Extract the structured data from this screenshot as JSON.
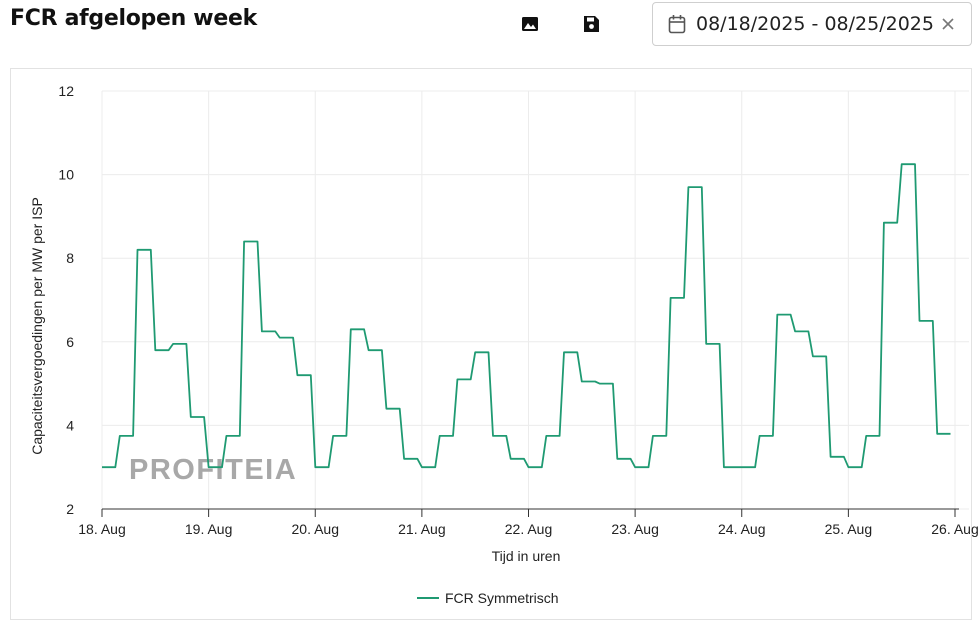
{
  "header": {
    "title": "FCR afgelopen week"
  },
  "toolbar": {
    "download_image_icon": "image-icon",
    "save_icon": "floppy-disk-icon"
  },
  "date_range": {
    "value": "08/18/2025 - 08/25/2025",
    "icon": "calendar-icon",
    "clear_icon": "close-icon"
  },
  "watermark": "PROFITEIA",
  "colors": {
    "series": "#1f9a72",
    "grid": "#ececec",
    "axis": "#333333"
  },
  "chart_data": {
    "type": "line",
    "title": "",
    "xlabel": "Tijd in uren",
    "ylabel": "Capaciteitsvergoedingen per MW per ISP",
    "ylim": [
      2,
      12
    ],
    "yticks": [
      2,
      4,
      6,
      8,
      10,
      12
    ],
    "xlim": [
      0,
      8
    ],
    "xticks": [
      0,
      1,
      2,
      3,
      4,
      5,
      6,
      7,
      8
    ],
    "xtick_labels": [
      "18. Aug",
      "19. Aug",
      "20. Aug",
      "21. Aug",
      "22. Aug",
      "23. Aug",
      "24. Aug",
      "25. Aug",
      "26. Aug"
    ],
    "grid": true,
    "legend_position": "bottom",
    "series": [
      {
        "name": "FCR Symmetrisch",
        "color": "#1f9a72",
        "points": [
          [
            0.0,
            3.0
          ],
          [
            0.125,
            3.0
          ],
          [
            0.167,
            3.75
          ],
          [
            0.292,
            3.75
          ],
          [
            0.333,
            8.2
          ],
          [
            0.458,
            8.2
          ],
          [
            0.5,
            5.8
          ],
          [
            0.625,
            5.8
          ],
          [
            0.667,
            5.95
          ],
          [
            0.792,
            5.95
          ],
          [
            0.833,
            4.2
          ],
          [
            0.958,
            4.2
          ],
          [
            1.0,
            3.0
          ],
          [
            1.125,
            3.0
          ],
          [
            1.167,
            3.75
          ],
          [
            1.292,
            3.75
          ],
          [
            1.333,
            8.4
          ],
          [
            1.458,
            8.4
          ],
          [
            1.5,
            6.25
          ],
          [
            1.625,
            6.25
          ],
          [
            1.667,
            6.1
          ],
          [
            1.792,
            6.1
          ],
          [
            1.833,
            5.2
          ],
          [
            1.958,
            5.2
          ],
          [
            2.0,
            3.0
          ],
          [
            2.125,
            3.0
          ],
          [
            2.167,
            3.75
          ],
          [
            2.292,
            3.75
          ],
          [
            2.333,
            6.3
          ],
          [
            2.458,
            6.3
          ],
          [
            2.5,
            5.8
          ],
          [
            2.625,
            5.8
          ],
          [
            2.667,
            4.4
          ],
          [
            2.792,
            4.4
          ],
          [
            2.833,
            3.2
          ],
          [
            2.958,
            3.2
          ],
          [
            3.0,
            3.0
          ],
          [
            3.125,
            3.0
          ],
          [
            3.167,
            3.75
          ],
          [
            3.292,
            3.75
          ],
          [
            3.333,
            5.1
          ],
          [
            3.458,
            5.1
          ],
          [
            3.5,
            5.75
          ],
          [
            3.625,
            5.75
          ],
          [
            3.667,
            3.75
          ],
          [
            3.792,
            3.75
          ],
          [
            3.833,
            3.2
          ],
          [
            3.958,
            3.2
          ],
          [
            4.0,
            3.0
          ],
          [
            4.125,
            3.0
          ],
          [
            4.167,
            3.75
          ],
          [
            4.292,
            3.75
          ],
          [
            4.333,
            5.75
          ],
          [
            4.458,
            5.75
          ],
          [
            4.5,
            5.05
          ],
          [
            4.625,
            5.05
          ],
          [
            4.667,
            5.0
          ],
          [
            4.792,
            5.0
          ],
          [
            4.833,
            3.2
          ],
          [
            4.958,
            3.2
          ],
          [
            5.0,
            3.0
          ],
          [
            5.125,
            3.0
          ],
          [
            5.167,
            3.75
          ],
          [
            5.292,
            3.75
          ],
          [
            5.333,
            7.05
          ],
          [
            5.458,
            7.05
          ],
          [
            5.5,
            9.7
          ],
          [
            5.625,
            9.7
          ],
          [
            5.667,
            5.95
          ],
          [
            5.792,
            5.95
          ],
          [
            5.833,
            3.0
          ],
          [
            5.958,
            3.0
          ],
          [
            6.0,
            3.0
          ],
          [
            6.125,
            3.0
          ],
          [
            6.167,
            3.75
          ],
          [
            6.292,
            3.75
          ],
          [
            6.333,
            6.65
          ],
          [
            6.458,
            6.65
          ],
          [
            6.5,
            6.25
          ],
          [
            6.625,
            6.25
          ],
          [
            6.667,
            5.65
          ],
          [
            6.792,
            5.65
          ],
          [
            6.833,
            3.25
          ],
          [
            6.958,
            3.25
          ],
          [
            7.0,
            3.0
          ],
          [
            7.125,
            3.0
          ],
          [
            7.167,
            3.75
          ],
          [
            7.292,
            3.75
          ],
          [
            7.333,
            8.85
          ],
          [
            7.458,
            8.85
          ],
          [
            7.5,
            10.25
          ],
          [
            7.625,
            10.25
          ],
          [
            7.667,
            6.5
          ],
          [
            7.792,
            6.5
          ],
          [
            7.833,
            3.8
          ],
          [
            7.958,
            3.8
          ]
        ]
      }
    ]
  }
}
